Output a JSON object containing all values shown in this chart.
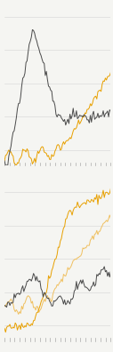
{
  "background_color": "#f5f5f2",
  "line_color_dark": "#4a4a4a",
  "line_color_orange": "#e8a000",
  "line_color_orange_light": "#f0c060",
  "linewidth": 0.7,
  "n_points": 100,
  "grid_color": "#d8d8d8",
  "tick_color": "#aaaaaa"
}
